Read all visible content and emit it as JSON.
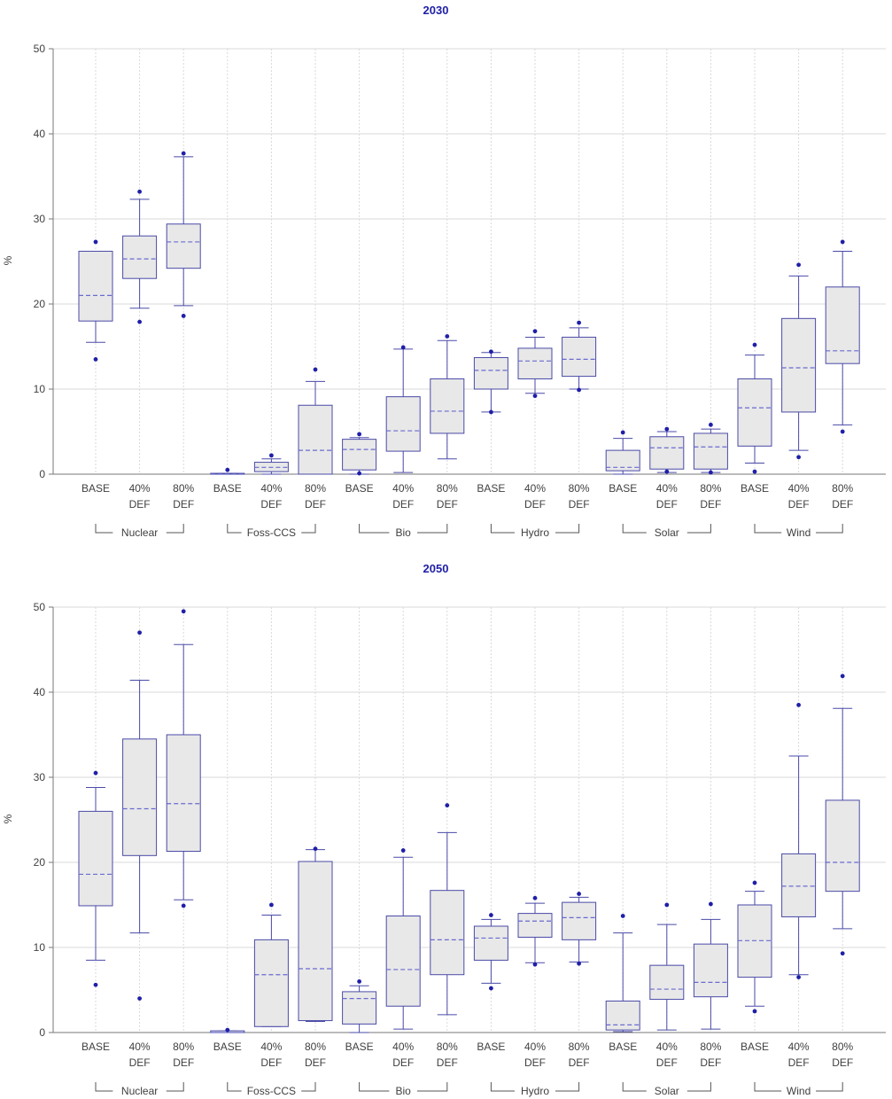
{
  "chart_data": [
    {
      "type": "box",
      "title": "2030",
      "ylabel": "%",
      "ylim": [
        0,
        50
      ],
      "yticks": [
        "0",
        "10",
        "20",
        "30",
        "40",
        "50"
      ],
      "groups": [
        "Nuclear",
        "Foss-CCS",
        "Bio",
        "Hydro",
        "Solar",
        "Wind"
      ],
      "scenarios": [
        [
          "BASE",
          ""
        ],
        [
          "40%",
          "DEF"
        ],
        [
          "80%",
          "DEF"
        ]
      ],
      "boxes": [
        {
          "group": "Nuclear",
          "scenario": "BASE",
          "whisker_low": 15.5,
          "q1": 18,
          "median": 21,
          "q3": 26.2,
          "whisker_high": 26.2,
          "outliers": [
            13.5,
            27.3
          ]
        },
        {
          "group": "Nuclear",
          "scenario": "40% DEF",
          "whisker_low": 19.5,
          "q1": 23,
          "median": 25.3,
          "q3": 28,
          "whisker_high": 32.3,
          "outliers": [
            17.9,
            33.2
          ]
        },
        {
          "group": "Nuclear",
          "scenario": "80% DEF",
          "whisker_low": 19.8,
          "q1": 24.2,
          "median": 27.3,
          "q3": 29.4,
          "whisker_high": 37.3,
          "outliers": [
            18.6,
            37.7
          ]
        },
        {
          "group": "Foss-CCS",
          "scenario": "BASE",
          "whisker_low": 0,
          "q1": 0,
          "median": 0,
          "q3": 0.1,
          "whisker_high": 0.1,
          "outliers": [
            0.5
          ]
        },
        {
          "group": "Foss-CCS",
          "scenario": "40% DEF",
          "whisker_low": 0,
          "q1": 0.3,
          "median": 0.8,
          "q3": 1.4,
          "whisker_high": 1.8,
          "outliers": [
            2.2
          ]
        },
        {
          "group": "Foss-CCS",
          "scenario": "80% DEF",
          "whisker_low": 0,
          "q1": 0,
          "median": 2.8,
          "q3": 8.1,
          "whisker_high": 10.9,
          "outliers": [
            12.3
          ]
        },
        {
          "group": "Bio",
          "scenario": "BASE",
          "whisker_low": 0,
          "q1": 0.5,
          "median": 2.9,
          "q3": 4.1,
          "whisker_high": 4.3,
          "outliers": [
            4.7,
            0.1
          ]
        },
        {
          "group": "Bio",
          "scenario": "40% DEF",
          "whisker_low": 0.2,
          "q1": 2.7,
          "median": 5.1,
          "q3": 9.1,
          "whisker_high": 14.7,
          "outliers": [
            14.9
          ]
        },
        {
          "group": "Bio",
          "scenario": "80% DEF",
          "whisker_low": 1.8,
          "q1": 4.8,
          "median": 7.4,
          "q3": 11.2,
          "whisker_high": 15.7,
          "outliers": [
            16.2
          ]
        },
        {
          "group": "Hydro",
          "scenario": "BASE",
          "whisker_low": 7.3,
          "q1": 10,
          "median": 12.2,
          "q3": 13.7,
          "whisker_high": 14.3,
          "outliers": [
            14.4,
            7.3
          ]
        },
        {
          "group": "Hydro",
          "scenario": "40% DEF",
          "whisker_low": 9.5,
          "q1": 11.2,
          "median": 13.3,
          "q3": 14.8,
          "whisker_high": 16.1,
          "outliers": [
            16.8,
            9.2
          ]
        },
        {
          "group": "Hydro",
          "scenario": "80% DEF",
          "whisker_low": 10,
          "q1": 11.5,
          "median": 13.5,
          "q3": 16.1,
          "whisker_high": 17.2,
          "outliers": [
            17.8,
            9.9
          ]
        },
        {
          "group": "Solar",
          "scenario": "BASE",
          "whisker_low": 0,
          "q1": 0.4,
          "median": 0.8,
          "q3": 2.8,
          "whisker_high": 4.2,
          "outliers": [
            4.9
          ]
        },
        {
          "group": "Solar",
          "scenario": "40% DEF",
          "whisker_low": 0.2,
          "q1": 0.6,
          "median": 3.1,
          "q3": 4.4,
          "whisker_high": 5,
          "outliers": [
            5.3,
            0.3
          ]
        },
        {
          "group": "Solar",
          "scenario": "80% DEF",
          "whisker_low": 0.2,
          "q1": 0.6,
          "median": 3.2,
          "q3": 4.8,
          "whisker_high": 5.3,
          "outliers": [
            5.8,
            0.2
          ]
        },
        {
          "group": "Wind",
          "scenario": "BASE",
          "whisker_low": 1.3,
          "q1": 3.3,
          "median": 7.8,
          "q3": 11.2,
          "whisker_high": 14,
          "outliers": [
            15.2,
            0.3
          ]
        },
        {
          "group": "Wind",
          "scenario": "40% DEF",
          "whisker_low": 2.8,
          "q1": 7.3,
          "median": 12.5,
          "q3": 18.3,
          "whisker_high": 23.3,
          "outliers": [
            24.6,
            2
          ]
        },
        {
          "group": "Wind",
          "scenario": "80% DEF",
          "whisker_low": 5.8,
          "q1": 13,
          "median": 14.5,
          "q3": 22,
          "whisker_high": 26.2,
          "outliers": [
            27.3,
            5
          ]
        }
      ]
    },
    {
      "type": "box",
      "title": "2050",
      "ylabel": "%",
      "ylim": [
        0,
        50
      ],
      "yticks": [
        "0",
        "10",
        "20",
        "30",
        "40",
        "50"
      ],
      "groups": [
        "Nuclear",
        "Foss-CCS",
        "Bio",
        "Hydro",
        "Solar",
        "Wind"
      ],
      "scenarios": [
        [
          "BASE",
          ""
        ],
        [
          "40%",
          "DEF"
        ],
        [
          "80%",
          "DEF"
        ]
      ],
      "boxes": [
        {
          "group": "Nuclear",
          "scenario": "BASE",
          "whisker_low": 8.5,
          "q1": 14.9,
          "median": 18.6,
          "q3": 26,
          "whisker_high": 28.8,
          "outliers": [
            30.5,
            5.6
          ]
        },
        {
          "group": "Nuclear",
          "scenario": "40% DEF",
          "whisker_low": 11.7,
          "q1": 20.8,
          "median": 26.3,
          "q3": 34.5,
          "whisker_high": 41.4,
          "outliers": [
            47,
            4
          ]
        },
        {
          "group": "Nuclear",
          "scenario": "80% DEF",
          "whisker_low": 15.6,
          "q1": 21.3,
          "median": 26.9,
          "q3": 35,
          "whisker_high": 45.6,
          "outliers": [
            49.5,
            14.9
          ]
        },
        {
          "group": "Foss-CCS",
          "scenario": "BASE",
          "whisker_low": 0,
          "q1": 0,
          "median": 0,
          "q3": 0.2,
          "whisker_high": 0.2,
          "outliers": [
            0.3
          ]
        },
        {
          "group": "Foss-CCS",
          "scenario": "40% DEF",
          "whisker_low": 0.7,
          "q1": 0.7,
          "median": 6.8,
          "q3": 10.9,
          "whisker_high": 13.8,
          "outliers": [
            15
          ]
        },
        {
          "group": "Foss-CCS",
          "scenario": "80% DEF",
          "whisker_low": 1.3,
          "q1": 1.4,
          "median": 7.5,
          "q3": 20.1,
          "whisker_high": 21.5,
          "outliers": [
            21.6
          ]
        },
        {
          "group": "Bio",
          "scenario": "BASE",
          "whisker_low": 0,
          "q1": 1,
          "median": 4,
          "q3": 4.8,
          "whisker_high": 5.5,
          "outliers": [
            6
          ]
        },
        {
          "group": "Bio",
          "scenario": "40% DEF",
          "whisker_low": 0.4,
          "q1": 3.1,
          "median": 7.4,
          "q3": 13.7,
          "whisker_high": 20.6,
          "outliers": [
            21.4
          ]
        },
        {
          "group": "Bio",
          "scenario": "80% DEF",
          "whisker_low": 2.1,
          "q1": 6.8,
          "median": 10.9,
          "q3": 16.7,
          "whisker_high": 23.5,
          "outliers": [
            26.7
          ]
        },
        {
          "group": "Hydro",
          "scenario": "BASE",
          "whisker_low": 5.8,
          "q1": 8.5,
          "median": 11.1,
          "q3": 12.5,
          "whisker_high": 13.3,
          "outliers": [
            13.8,
            5.2
          ]
        },
        {
          "group": "Hydro",
          "scenario": "40% DEF",
          "whisker_low": 8.2,
          "q1": 11.2,
          "median": 13.1,
          "q3": 14,
          "whisker_high": 15.2,
          "outliers": [
            15.8,
            8
          ]
        },
        {
          "group": "Hydro",
          "scenario": "80% DEF",
          "whisker_low": 8.3,
          "q1": 10.9,
          "median": 13.5,
          "q3": 15.3,
          "whisker_high": 15.9,
          "outliers": [
            16.3,
            8.1
          ]
        },
        {
          "group": "Solar",
          "scenario": "BASE",
          "whisker_low": 0.1,
          "q1": 0.3,
          "median": 0.9,
          "q3": 3.7,
          "whisker_high": 11.7,
          "outliers": [
            13.7
          ]
        },
        {
          "group": "Solar",
          "scenario": "40% DEF",
          "whisker_low": 0.3,
          "q1": 3.9,
          "median": 5.1,
          "q3": 7.9,
          "whisker_high": 12.7,
          "outliers": [
            15
          ]
        },
        {
          "group": "Solar",
          "scenario": "80% DEF",
          "whisker_low": 0.4,
          "q1": 4.2,
          "median": 5.9,
          "q3": 10.4,
          "whisker_high": 13.3,
          "outliers": [
            15.1
          ]
        },
        {
          "group": "Wind",
          "scenario": "BASE",
          "whisker_low": 3.1,
          "q1": 6.5,
          "median": 10.8,
          "q3": 15,
          "whisker_high": 16.6,
          "outliers": [
            17.6,
            2.5
          ]
        },
        {
          "group": "Wind",
          "scenario": "40% DEF",
          "whisker_low": 6.8,
          "q1": 13.6,
          "median": 17.2,
          "q3": 21,
          "whisker_high": 32.5,
          "outliers": [
            38.5,
            6.5
          ]
        },
        {
          "group": "Wind",
          "scenario": "80% DEF",
          "whisker_low": 12.2,
          "q1": 16.6,
          "median": 20,
          "q3": 27.3,
          "whisker_high": 38.1,
          "outliers": [
            41.9,
            9.3
          ]
        }
      ]
    }
  ],
  "colors": {
    "title": "#1f1fa8",
    "box_fill": "#e8e8e8",
    "box_stroke": "#4a4aa8",
    "median": "#6a6ad0",
    "outlier": "#1f1fa8",
    "grid": "#d9d9d9",
    "axis": "#777777",
    "text": "#404040"
  }
}
